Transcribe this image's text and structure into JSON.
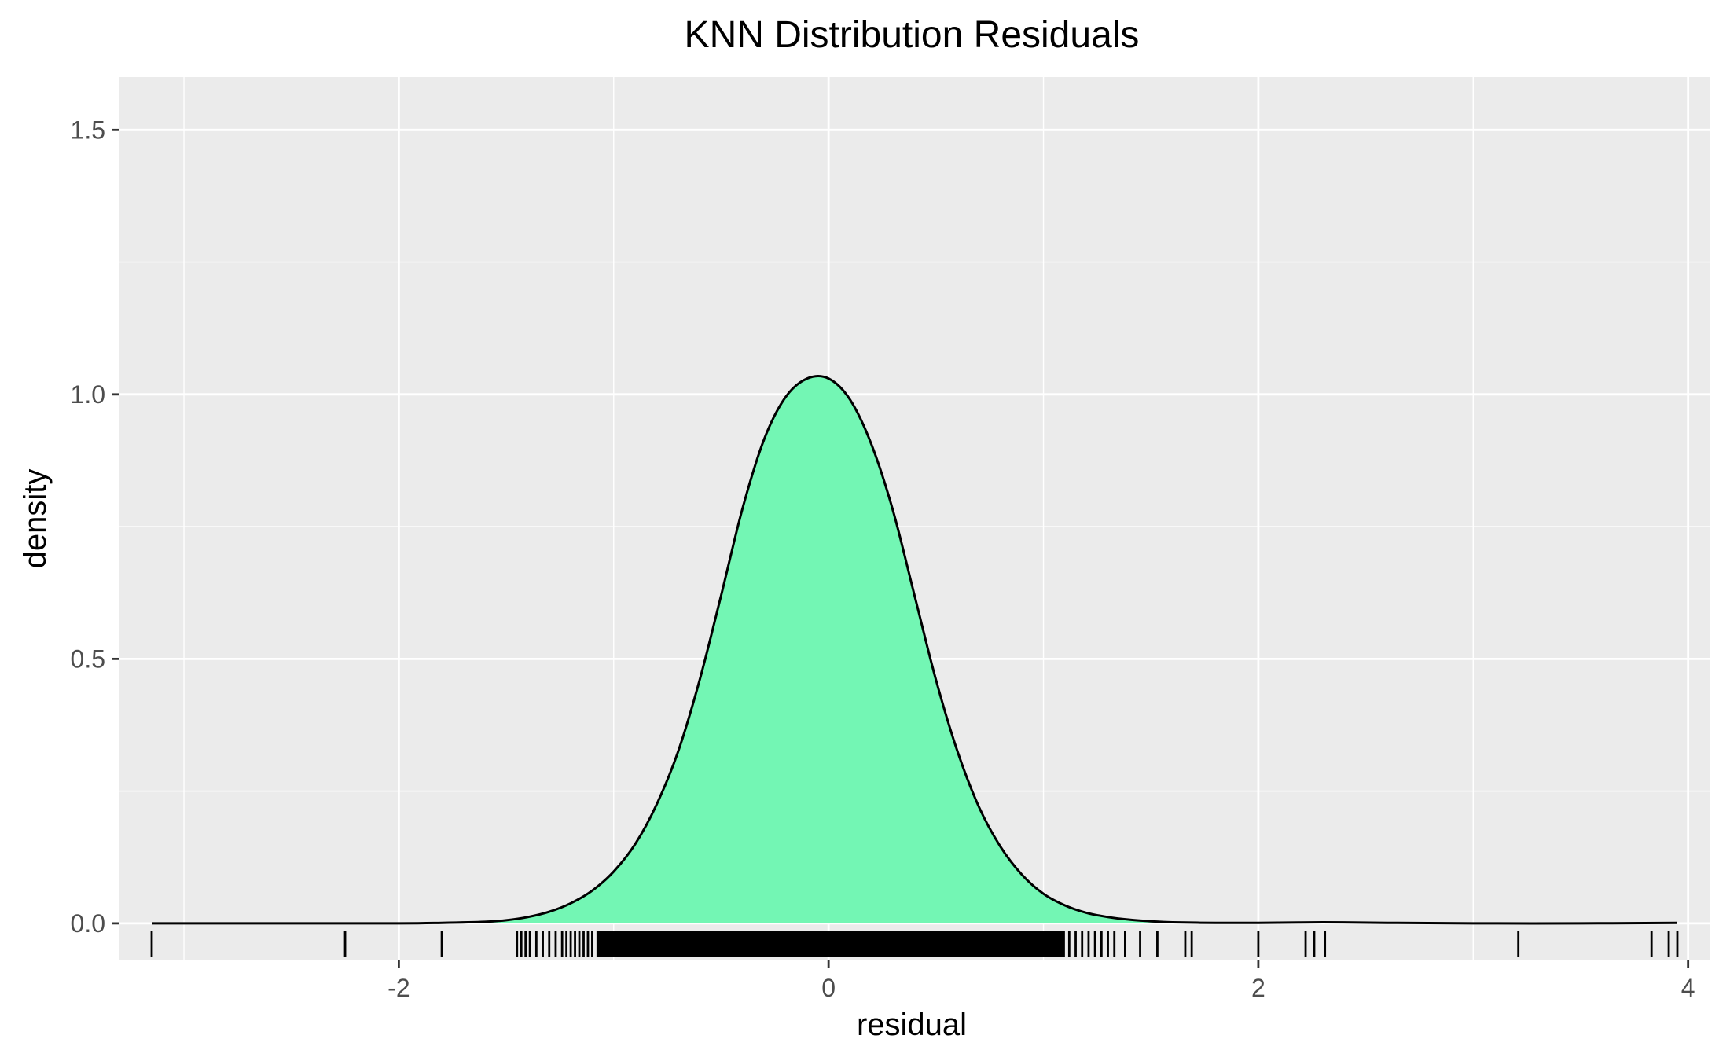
{
  "chart_data": {
    "type": "density",
    "title": "KNN Distribution Residuals",
    "xlabel": "residual",
    "ylabel": "density",
    "xlim": [
      -3.3,
      4.1
    ],
    "ylim": [
      -0.07,
      1.6
    ],
    "xticks": [
      -2,
      0,
      2,
      4
    ],
    "xtick_labels": [
      "-2",
      "0",
      "2",
      "4"
    ],
    "yticks": [
      0.0,
      0.5,
      1.0,
      1.5
    ],
    "ytick_labels": [
      "0.0",
      "0.5",
      "1.0",
      "1.5"
    ],
    "grid": true,
    "background_color": "#ebebeb",
    "grid_color": "#ffffff",
    "fill_color": "#73f6b4",
    "line_color": "#000000",
    "density_curve": {
      "x": [
        -3.15,
        -2.5,
        -2.0,
        -1.8,
        -1.6,
        -1.5,
        -1.4,
        -1.3,
        -1.2,
        -1.1,
        -1.0,
        -0.9,
        -0.8,
        -0.7,
        -0.6,
        -0.5,
        -0.4,
        -0.3,
        -0.2,
        -0.1,
        0.0,
        0.1,
        0.2,
        0.3,
        0.4,
        0.5,
        0.6,
        0.7,
        0.8,
        0.9,
        1.0,
        1.1,
        1.2,
        1.3,
        1.4,
        1.5,
        1.6,
        1.8,
        2.0,
        2.3,
        2.6,
        3.0,
        3.5,
        3.95
      ],
      "y": [
        0.0,
        0.0,
        0.0,
        0.001,
        0.003,
        0.006,
        0.012,
        0.022,
        0.038,
        0.062,
        0.098,
        0.15,
        0.225,
        0.325,
        0.46,
        0.62,
        0.785,
        0.915,
        0.995,
        1.03,
        1.03,
        0.99,
        0.905,
        0.78,
        0.62,
        0.46,
        0.325,
        0.22,
        0.145,
        0.092,
        0.056,
        0.034,
        0.02,
        0.012,
        0.007,
        0.004,
        0.002,
        0.001,
        0.001,
        0.002,
        0.001,
        0.0,
        0.0,
        0.001
      ]
    },
    "rug": {
      "x": [
        -3.15,
        -2.25,
        -1.8,
        -1.45,
        -1.43,
        -1.41,
        -1.39,
        -1.36,
        -1.33,
        -1.3,
        -1.27,
        -1.24,
        -1.22,
        -1.2,
        -1.18,
        -1.16,
        -1.14,
        -1.12,
        -1.1,
        1.12,
        1.15,
        1.18,
        1.21,
        1.24,
        1.27,
        1.3,
        1.33,
        1.38,
        1.45,
        1.53,
        1.66,
        1.69,
        2.0,
        2.22,
        2.26,
        2.31,
        3.21,
        3.83,
        3.91,
        3.95
      ],
      "dense_band": [
        -1.08,
        1.1
      ]
    }
  }
}
